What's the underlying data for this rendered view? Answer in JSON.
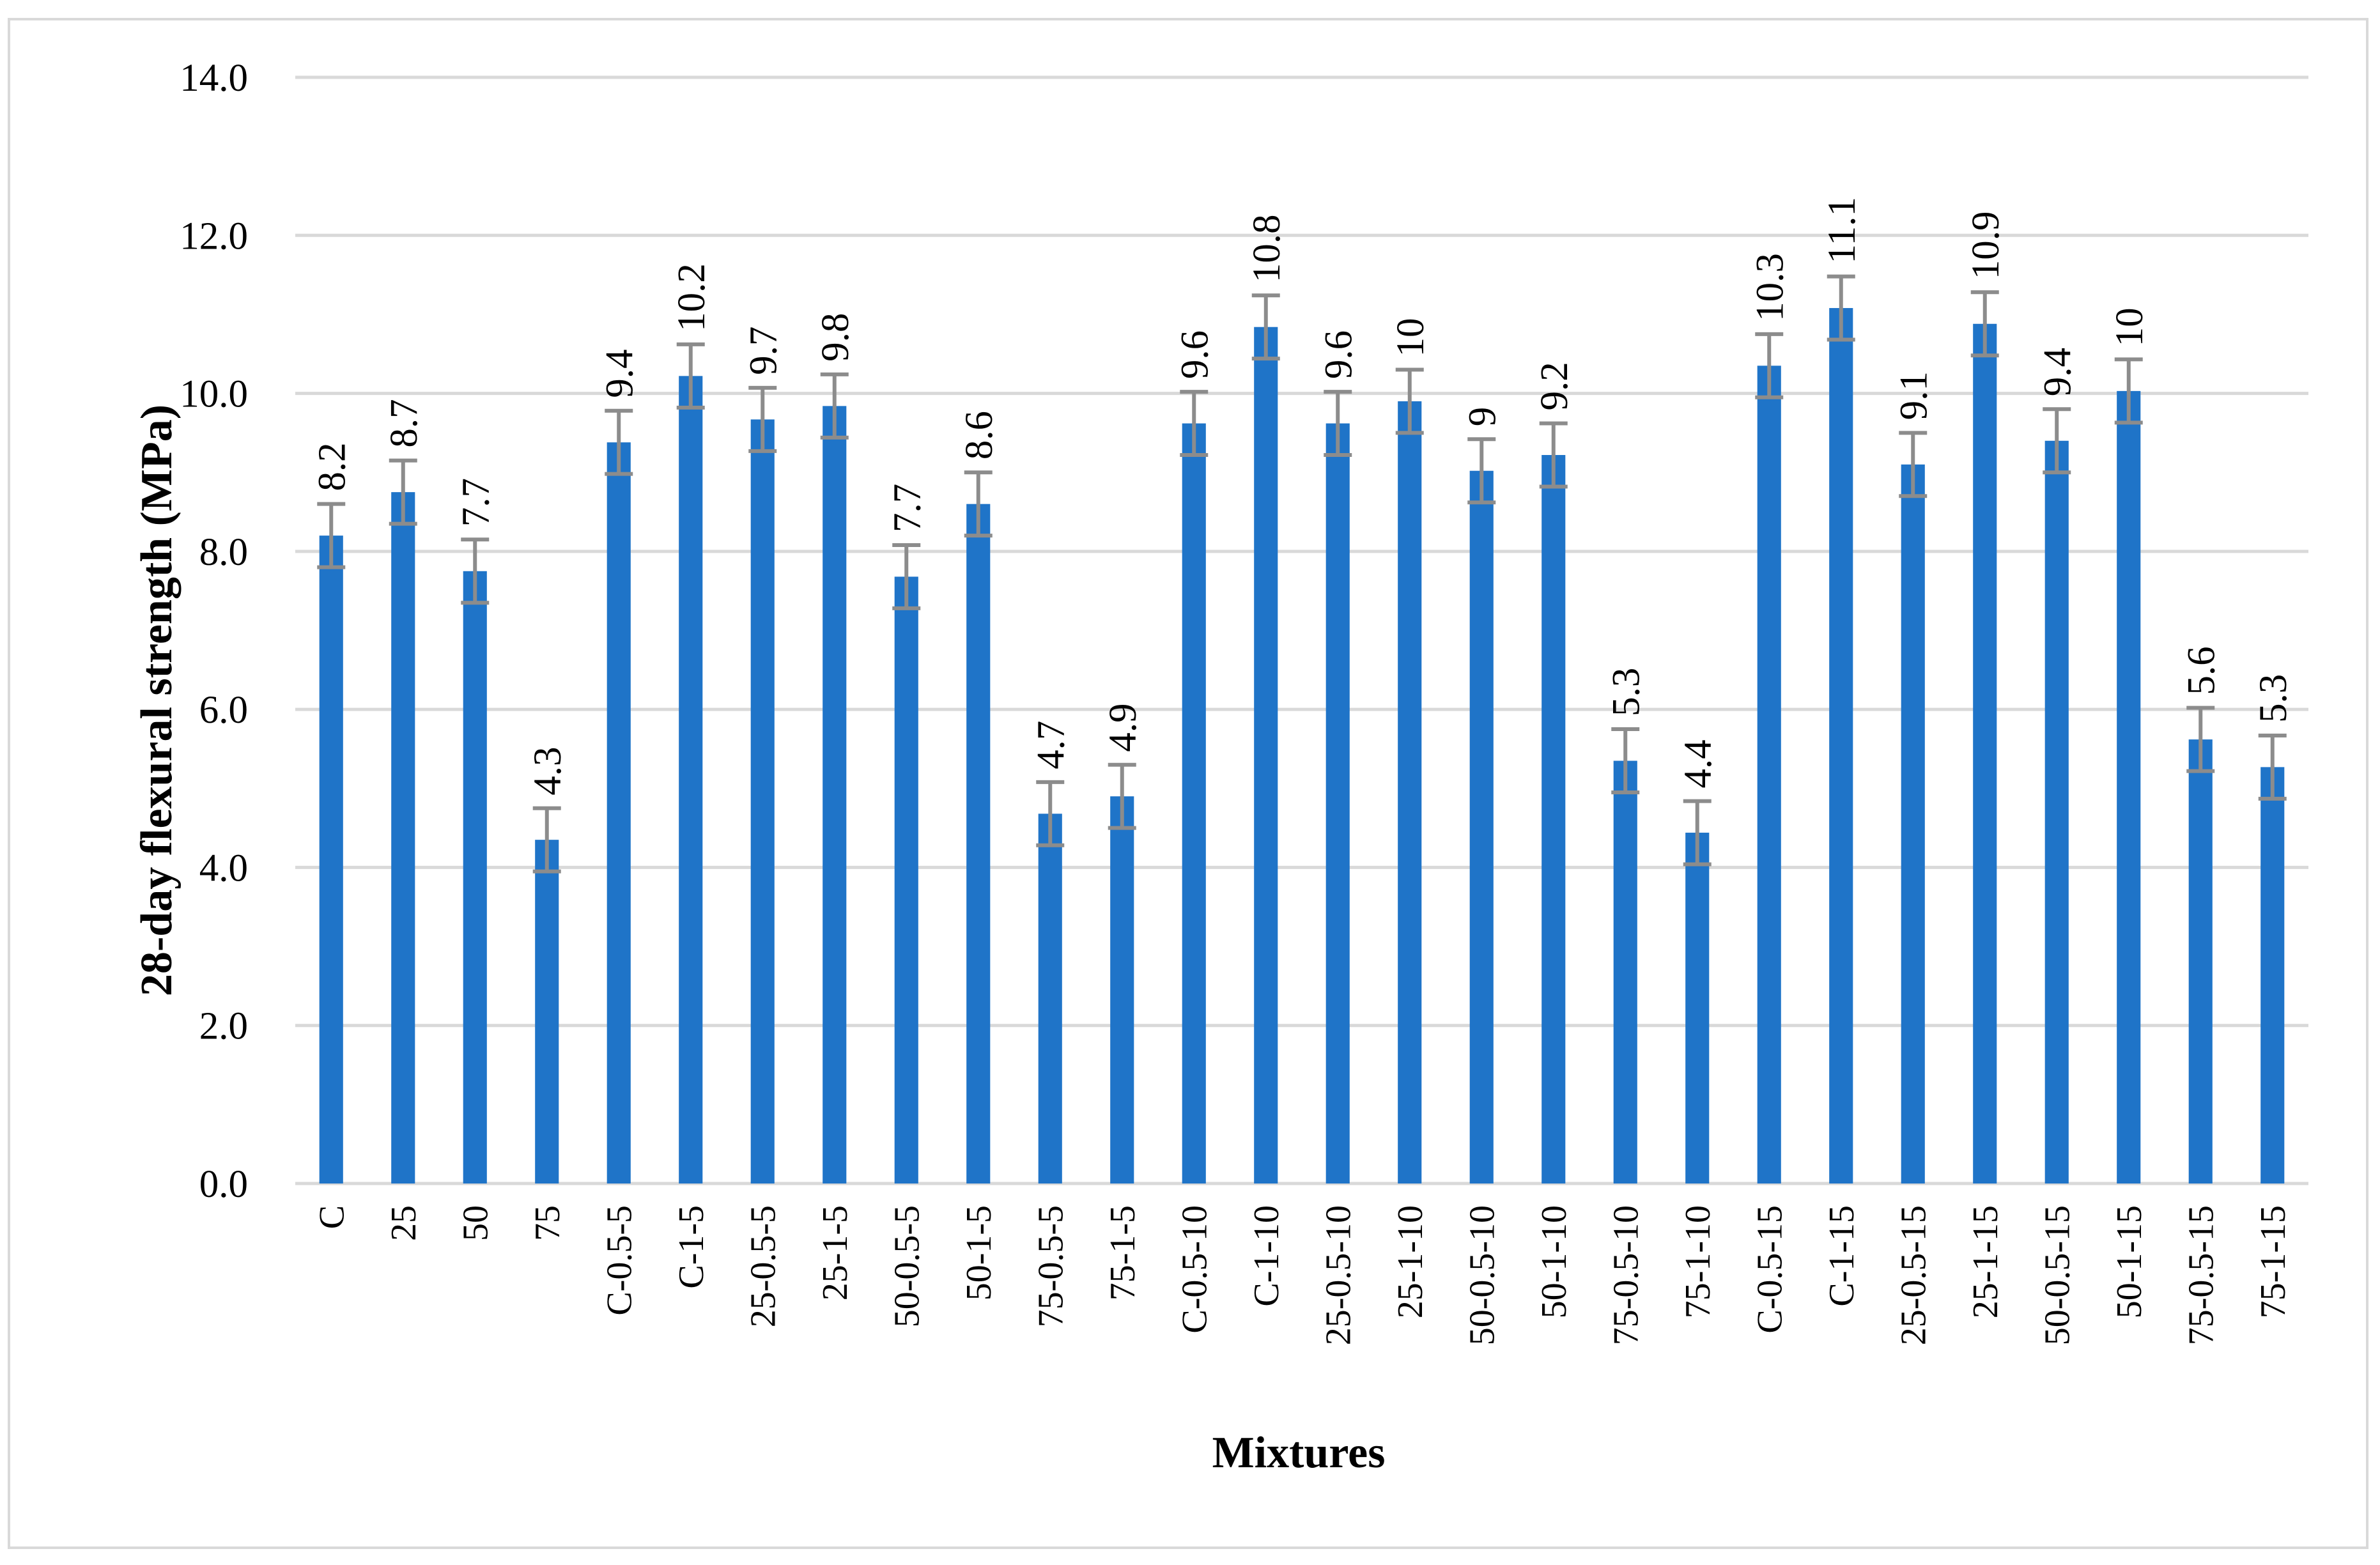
{
  "chart_data": {
    "type": "bar",
    "title": "",
    "xlabel": "Mixtures",
    "ylabel": "28-day flexural strength (MPa)",
    "ylim": [
      0,
      14
    ],
    "yticks": [
      "0.0",
      "2.0",
      "4.0",
      "6.0",
      "8.0",
      "10.0",
      "12.0",
      "14.0"
    ],
    "grid": true,
    "legend": "none",
    "bar_color": "#1f74c8",
    "error_bar_color": "#8c8c8c",
    "grid_color": "#d9d9d9",
    "categories": [
      "C",
      "25",
      "50",
      "75",
      "C-0.5-5",
      "C-1-5",
      "25-0.5-5",
      "25-1-5",
      "50-0.5-5",
      "50-1-5",
      "75-0.5-5",
      "75-1-5",
      "C-0.5-10",
      "C-1-10",
      "25-0.5-10",
      "25-1-10",
      "50-0.5-10",
      "50-1-10",
      "75-0.5-10",
      "75-1-10",
      "C-0.5-15",
      "C-1-15",
      "25-0.5-15",
      "25-1-15",
      "50-0.5-15",
      "50-1-15",
      "75-0.5-15",
      "75-1-15"
    ],
    "values": [
      8.2,
      8.75,
      7.75,
      4.35,
      9.38,
      10.22,
      9.67,
      9.84,
      7.68,
      8.6,
      4.68,
      4.9,
      9.62,
      10.84,
      9.62,
      9.9,
      9.02,
      9.22,
      5.35,
      4.44,
      10.35,
      11.08,
      9.1,
      10.88,
      9.4,
      10.03,
      5.62,
      5.27
    ],
    "errors": [
      0.4,
      0.4,
      0.4,
      0.4,
      0.4,
      0.4,
      0.4,
      0.4,
      0.4,
      0.4,
      0.4,
      0.4,
      0.4,
      0.4,
      0.4,
      0.4,
      0.4,
      0.4,
      0.4,
      0.4,
      0.4,
      0.4,
      0.4,
      0.4,
      0.4,
      0.4,
      0.4,
      0.4
    ],
    "data_labels": [
      "8.2",
      "8.7",
      "7.7",
      "4.3",
      "9.4",
      "10.2",
      "9.7",
      "9.8",
      "7.7",
      "8.6",
      "4.7",
      "4.9",
      "9.6",
      "10.8",
      "9.6",
      "10",
      "9",
      "9.2",
      "5.3",
      "4.4",
      "10.3",
      "11.1",
      "9.1",
      "10.9",
      "9.4",
      "10",
      "5.6",
      "5.3"
    ]
  }
}
